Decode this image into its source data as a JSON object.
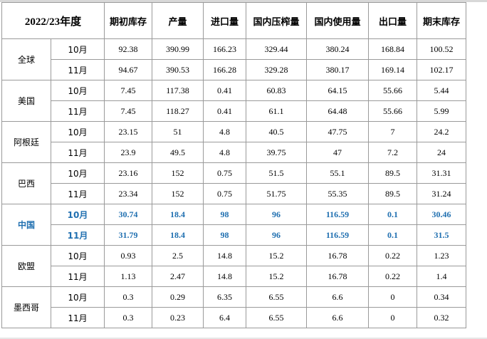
{
  "header": {
    "year": "2022/23年度",
    "columns": [
      "期初库存",
      "产量",
      "进口量",
      "国内压榨量",
      "国内使用量",
      "出口量",
      "期末库存"
    ]
  },
  "highlight_color": "#1f6fb0",
  "groups": [
    {
      "region": "全球",
      "rows": [
        {
          "month": "10月",
          "values": [
            "92.38",
            "390.99",
            "166.23",
            "329.44",
            "380.24",
            "168.84",
            "100.52"
          ]
        },
        {
          "month": "11月",
          "values": [
            "94.67",
            "390.53",
            "166.28",
            "329.28",
            "380.17",
            "169.14",
            "102.17"
          ]
        }
      ]
    },
    {
      "region": "美国",
      "rows": [
        {
          "month": "10月",
          "values": [
            "7.45",
            "117.38",
            "0.41",
            "60.83",
            "64.15",
            "55.66",
            "5.44"
          ]
        },
        {
          "month": "11月",
          "values": [
            "7.45",
            "118.27",
            "0.41",
            "61.1",
            "64.48",
            "55.66",
            "5.99"
          ]
        }
      ]
    },
    {
      "region": "阿根廷",
      "rows": [
        {
          "month": "10月",
          "values": [
            "23.15",
            "51",
            "4.8",
            "40.5",
            "47.75",
            "7",
            "24.2"
          ]
        },
        {
          "month": "11月",
          "values": [
            "23.9",
            "49.5",
            "4.8",
            "39.75",
            "47",
            "7.2",
            "24"
          ]
        }
      ]
    },
    {
      "region": "巴西",
      "rows": [
        {
          "month": "10月",
          "values": [
            "23.16",
            "152",
            "0.75",
            "51.5",
            "55.1",
            "89.5",
            "31.31"
          ]
        },
        {
          "month": "11月",
          "values": [
            "23.34",
            "152",
            "0.75",
            "51.75",
            "55.35",
            "89.5",
            "31.24"
          ]
        }
      ]
    },
    {
      "region": "中国",
      "highlight": true,
      "rows": [
        {
          "month": "10月",
          "values": [
            "30.74",
            "18.4",
            "98",
            "96",
            "116.59",
            "0.1",
            "30.46"
          ]
        },
        {
          "month": "11月",
          "values": [
            "31.79",
            "18.4",
            "98",
            "96",
            "116.59",
            "0.1",
            "31.5"
          ]
        }
      ]
    },
    {
      "region": "欧盟",
      "rows": [
        {
          "month": "10月",
          "values": [
            "0.93",
            "2.5",
            "14.8",
            "15.2",
            "16.78",
            "0.22",
            "1.23"
          ]
        },
        {
          "month": "11月",
          "values": [
            "1.13",
            "2.47",
            "14.8",
            "15.2",
            "16.78",
            "0.22",
            "1.4"
          ]
        }
      ]
    },
    {
      "region": "墨西哥",
      "rows": [
        {
          "month": "10月",
          "values": [
            "0.3",
            "0.29",
            "6.35",
            "6.55",
            "6.6",
            "0",
            "0.34"
          ]
        },
        {
          "month": "11月",
          "values": [
            "0.3",
            "0.23",
            "6.4",
            "6.55",
            "6.6",
            "0",
            "0.32"
          ]
        }
      ]
    }
  ]
}
